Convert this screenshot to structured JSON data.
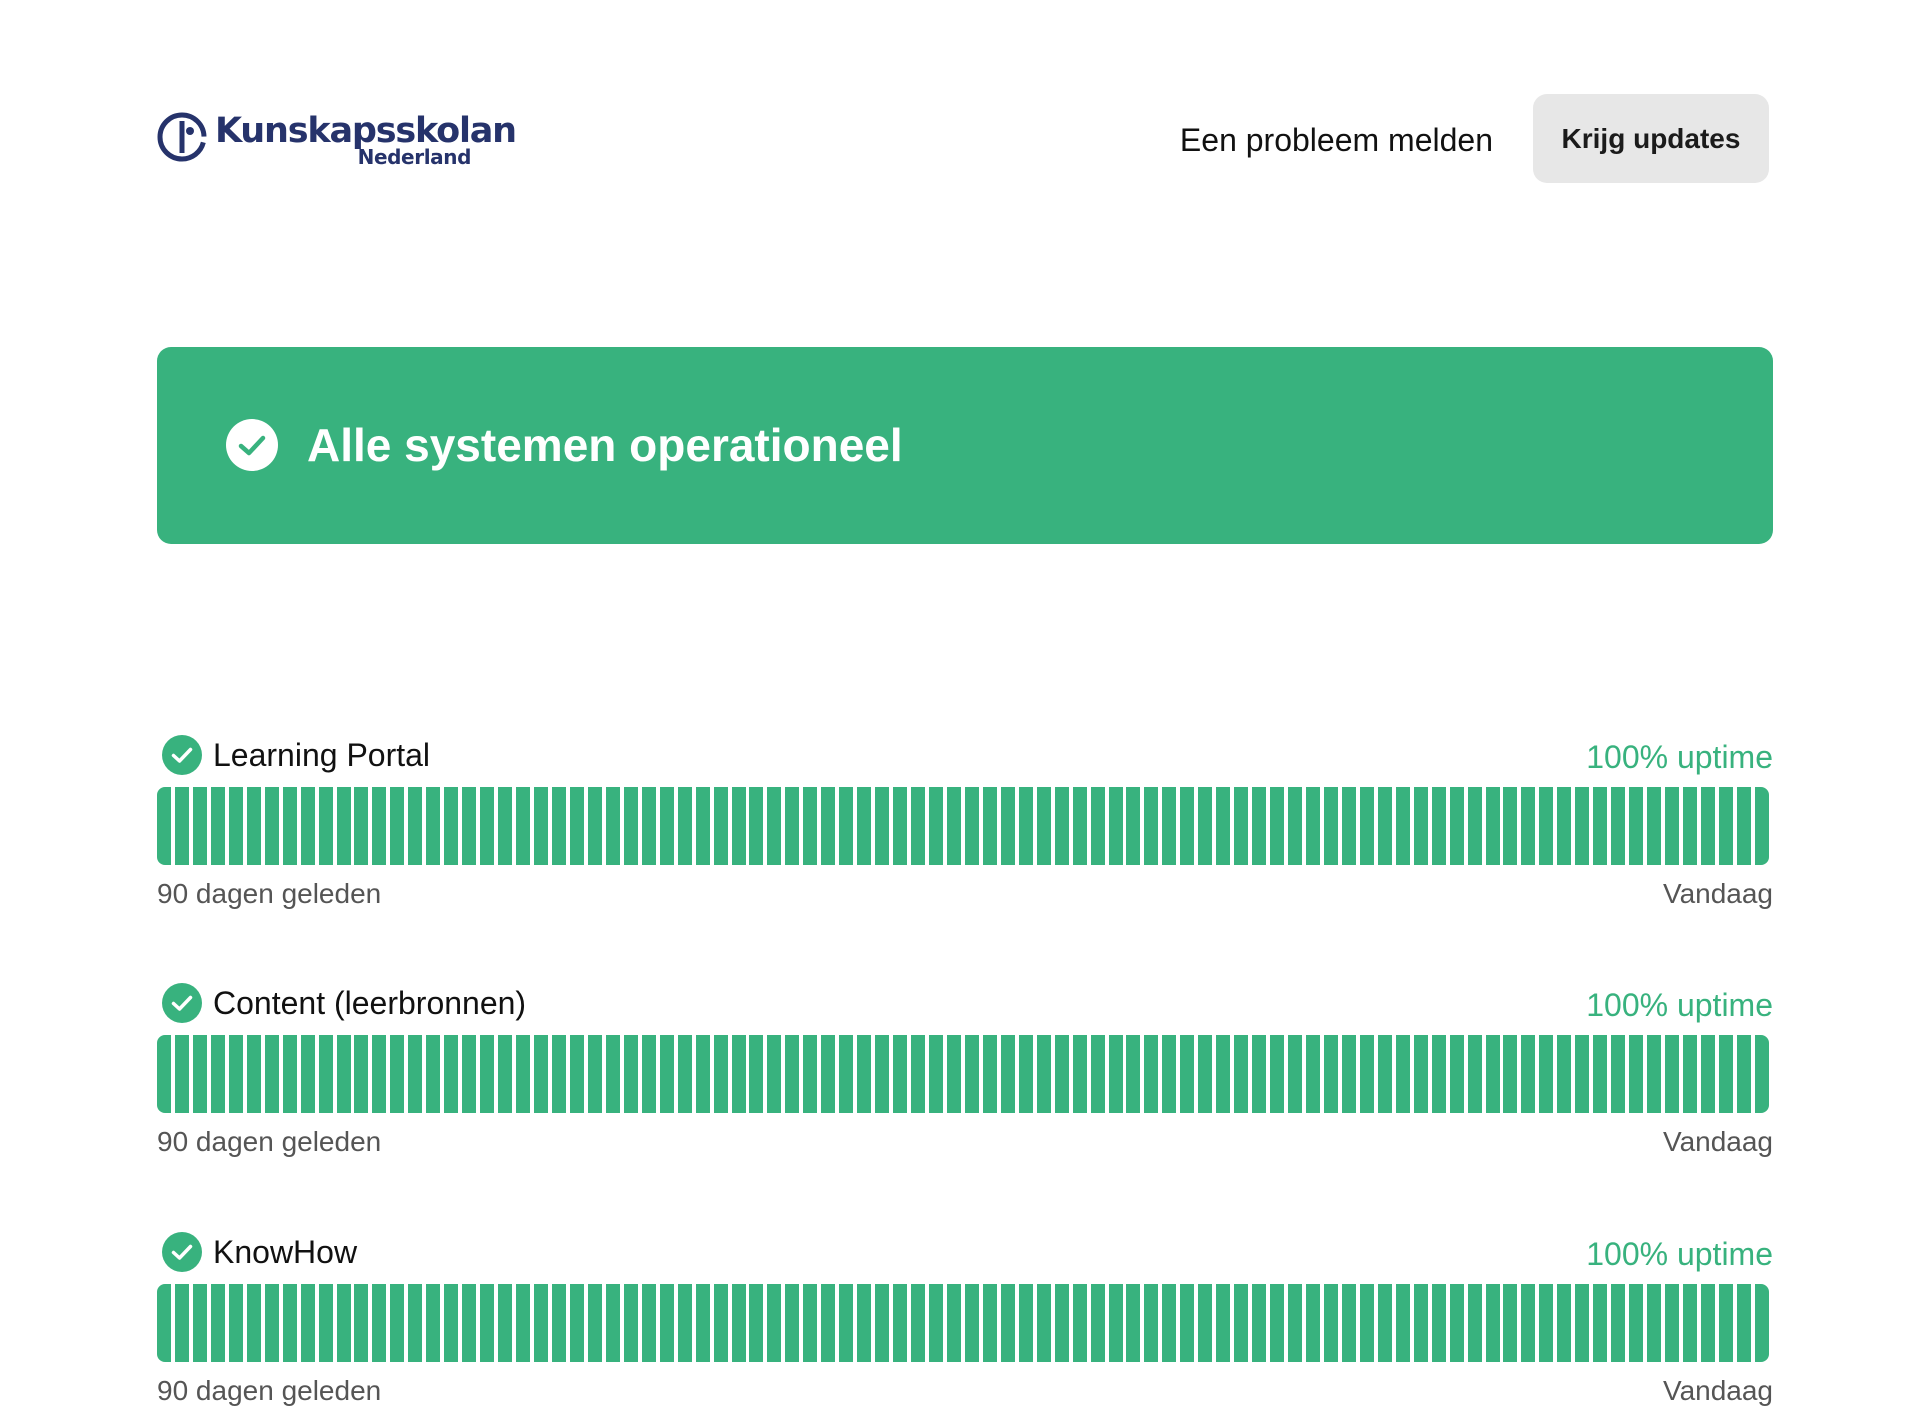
{
  "header": {
    "logo_title": "Kunskapsskolan",
    "logo_subtitle": "Nederland",
    "report_link": "Een probleem melden",
    "updates_button": "Krijg updates"
  },
  "banner": {
    "text": "Alle systemen operationeel",
    "icon": "check-circle-icon"
  },
  "colors": {
    "operational": "#38b27e",
    "brand": "#26336b",
    "button_bg": "#e7e7e7"
  },
  "components": [
    {
      "name": "Learning Portal",
      "uptime": "100% uptime",
      "status_icon": "check-circle-icon",
      "days": 90,
      "start_label": "90 dagen geleden",
      "end_label": "Vandaag"
    },
    {
      "name": "Content (leerbronnen)",
      "uptime": "100% uptime",
      "status_icon": "check-circle-icon",
      "days": 90,
      "start_label": "90 dagen geleden",
      "end_label": "Vandaag"
    },
    {
      "name": "KnowHow",
      "uptime": "100% uptime",
      "status_icon": "check-circle-icon",
      "days": 90,
      "start_label": "90 dagen geleden",
      "end_label": "Vandaag"
    }
  ]
}
